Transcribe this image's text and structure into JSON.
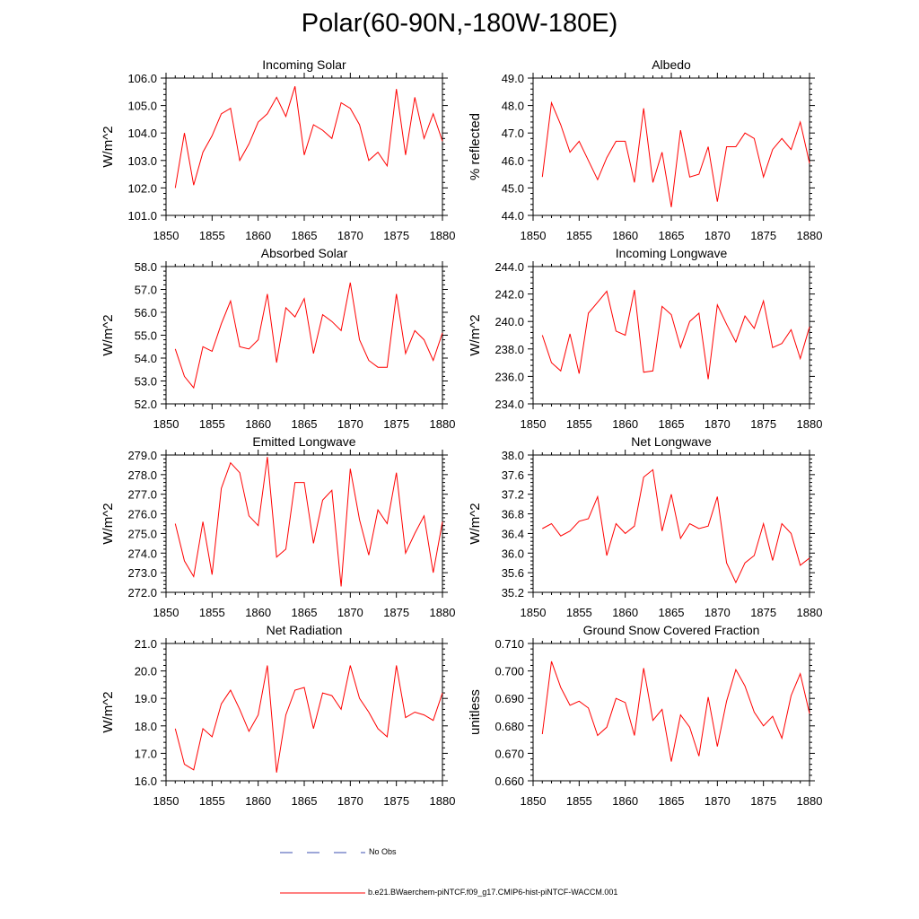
{
  "page_title": "Polar(60-90N,-180W-180E)",
  "legend": {
    "obs_label": "No Obs",
    "obs_color": "#3b4fb0",
    "model_label": "b.e21.BWaerchem-piNTCF.f09_g17.CMIP6-hist-piNTCF-WACCM.001",
    "model_color": "#ff0000"
  },
  "chart_data": [
    {
      "type": "line",
      "title": "Incoming Solar",
      "xlabel": "",
      "ylabel": "W/m^2",
      "xlim": [
        1850,
        1880
      ],
      "ylim": [
        101.0,
        106.0
      ],
      "xticks": [
        1850,
        1855,
        1860,
        1865,
        1870,
        1875,
        1880
      ],
      "yticks": [
        "101.0",
        "102.0",
        "103.0",
        "104.0",
        "105.0",
        "106.0"
      ],
      "series": [
        {
          "color": "#ff0000",
          "x": [
            1851,
            1852,
            1853,
            1854,
            1855,
            1856,
            1857,
            1858,
            1859,
            1860,
            1861,
            1862,
            1863,
            1864,
            1865,
            1866,
            1867,
            1868,
            1869,
            1870,
            1871,
            1872,
            1873,
            1874,
            1875,
            1876,
            1877,
            1878,
            1879,
            1880
          ],
          "values": [
            102.0,
            104.0,
            102.1,
            103.3,
            103.9,
            104.7,
            104.9,
            103.0,
            103.6,
            104.4,
            104.7,
            105.3,
            104.6,
            105.7,
            103.2,
            104.3,
            104.1,
            103.8,
            105.1,
            104.9,
            104.3,
            103.0,
            103.3,
            102.8,
            105.6,
            103.2,
            105.3,
            103.8,
            104.7,
            103.7
          ]
        }
      ]
    },
    {
      "type": "line",
      "title": "Albedo",
      "xlabel": "",
      "ylabel": "% reflected",
      "xlim": [
        1850,
        1880
      ],
      "ylim": [
        44.0,
        49.0
      ],
      "xticks": [
        1850,
        1855,
        1860,
        1865,
        1870,
        1875,
        1880
      ],
      "yticks": [
        "44.0",
        "45.0",
        "46.0",
        "47.0",
        "48.0",
        "49.0"
      ],
      "series": [
        {
          "color": "#ff0000",
          "x": [
            1851,
            1852,
            1853,
            1854,
            1855,
            1856,
            1857,
            1858,
            1859,
            1860,
            1861,
            1862,
            1863,
            1864,
            1865,
            1866,
            1867,
            1868,
            1869,
            1870,
            1871,
            1872,
            1873,
            1874,
            1875,
            1876,
            1877,
            1878,
            1879,
            1880
          ],
          "values": [
            45.4,
            48.1,
            47.3,
            46.3,
            46.7,
            46.0,
            45.3,
            46.1,
            46.7,
            46.7,
            45.2,
            47.9,
            45.2,
            46.3,
            44.3,
            47.1,
            45.4,
            45.5,
            46.5,
            44.5,
            46.5,
            46.5,
            47.0,
            46.8,
            45.4,
            46.4,
            46.8,
            46.4,
            47.4,
            45.9
          ]
        }
      ]
    },
    {
      "type": "line",
      "title": "Absorbed Solar",
      "xlabel": "",
      "ylabel": "W/m^2",
      "xlim": [
        1850,
        1880
      ],
      "ylim": [
        52.0,
        58.0
      ],
      "xticks": [
        1850,
        1855,
        1860,
        1865,
        1870,
        1875,
        1880
      ],
      "yticks": [
        "52.0",
        "53.0",
        "54.0",
        "55.0",
        "56.0",
        "57.0",
        "58.0"
      ],
      "series": [
        {
          "color": "#ff0000",
          "x": [
            1851,
            1852,
            1853,
            1854,
            1855,
            1856,
            1857,
            1858,
            1859,
            1860,
            1861,
            1862,
            1863,
            1864,
            1865,
            1866,
            1867,
            1868,
            1869,
            1870,
            1871,
            1872,
            1873,
            1874,
            1875,
            1876,
            1877,
            1878,
            1879,
            1880
          ],
          "values": [
            54.4,
            53.2,
            52.7,
            54.5,
            54.3,
            55.5,
            56.5,
            54.5,
            54.4,
            54.8,
            56.8,
            53.8,
            56.2,
            55.8,
            56.6,
            54.2,
            55.9,
            55.6,
            55.2,
            57.3,
            54.8,
            53.9,
            53.6,
            53.6,
            56.8,
            54.2,
            55.2,
            54.8,
            53.9,
            55.1
          ]
        }
      ]
    },
    {
      "type": "line",
      "title": "Incoming Longwave",
      "xlabel": "",
      "ylabel": "W/m^2",
      "xlim": [
        1850,
        1880
      ],
      "ylim": [
        234.0,
        244.0
      ],
      "xticks": [
        1850,
        1855,
        1860,
        1865,
        1870,
        1875,
        1880
      ],
      "yticks": [
        "234.0",
        "236.0",
        "238.0",
        "240.0",
        "242.0",
        "244.0"
      ],
      "series": [
        {
          "color": "#ff0000",
          "x": [
            1851,
            1852,
            1853,
            1854,
            1855,
            1856,
            1857,
            1858,
            1859,
            1860,
            1861,
            1862,
            1863,
            1864,
            1865,
            1866,
            1867,
            1868,
            1869,
            1870,
            1871,
            1872,
            1873,
            1874,
            1875,
            1876,
            1877,
            1878,
            1879,
            1880
          ],
          "values": [
            239.0,
            237.0,
            236.4,
            239.1,
            236.2,
            240.6,
            241.4,
            242.2,
            239.3,
            239.0,
            242.3,
            236.3,
            236.4,
            241.1,
            240.5,
            238.1,
            240.0,
            240.6,
            235.8,
            241.2,
            239.8,
            238.5,
            240.4,
            239.5,
            241.5,
            238.1,
            238.4,
            239.4,
            237.3,
            239.6
          ]
        }
      ]
    },
    {
      "type": "line",
      "title": "Emitted Longwave",
      "xlabel": "",
      "ylabel": "W/m^2",
      "xlim": [
        1850,
        1880
      ],
      "ylim": [
        272.0,
        279.0
      ],
      "xticks": [
        1850,
        1855,
        1860,
        1865,
        1870,
        1875,
        1880
      ],
      "yticks": [
        "272.0",
        "273.0",
        "274.0",
        "275.0",
        "276.0",
        "277.0",
        "278.0",
        "279.0"
      ],
      "series": [
        {
          "color": "#ff0000",
          "x": [
            1851,
            1852,
            1853,
            1854,
            1855,
            1856,
            1857,
            1858,
            1859,
            1860,
            1861,
            1862,
            1863,
            1864,
            1865,
            1866,
            1867,
            1868,
            1869,
            1870,
            1871,
            1872,
            1873,
            1874,
            1875,
            1876,
            1877,
            1878,
            1879,
            1880
          ],
          "values": [
            275.5,
            273.6,
            272.8,
            275.6,
            272.9,
            277.3,
            278.6,
            278.1,
            275.9,
            275.4,
            278.9,
            273.8,
            274.2,
            277.6,
            277.6,
            274.5,
            276.7,
            277.2,
            272.3,
            278.3,
            275.7,
            273.9,
            276.2,
            275.5,
            278.1,
            274.0,
            275.0,
            275.9,
            273.0,
            275.6
          ]
        }
      ]
    },
    {
      "type": "line",
      "title": "Net Longwave",
      "xlabel": "",
      "ylabel": "W/m^2",
      "xlim": [
        1850,
        1880
      ],
      "ylim": [
        35.2,
        38.0
      ],
      "xticks": [
        1850,
        1855,
        1860,
        1865,
        1870,
        1875,
        1880
      ],
      "yticks": [
        "35.2",
        "35.6",
        "36.0",
        "36.4",
        "36.8",
        "37.2",
        "37.6",
        "38.0"
      ],
      "series": [
        {
          "color": "#ff0000",
          "x": [
            1851,
            1852,
            1853,
            1854,
            1855,
            1856,
            1857,
            1858,
            1859,
            1860,
            1861,
            1862,
            1863,
            1864,
            1865,
            1866,
            1867,
            1868,
            1869,
            1870,
            1871,
            1872,
            1873,
            1874,
            1875,
            1876,
            1877,
            1878,
            1879,
            1880
          ],
          "values": [
            36.5,
            36.6,
            36.35,
            36.45,
            36.65,
            36.7,
            37.15,
            35.95,
            36.6,
            36.4,
            36.55,
            37.55,
            37.7,
            36.45,
            37.2,
            36.3,
            36.6,
            36.5,
            36.55,
            37.15,
            35.8,
            35.4,
            35.8,
            35.95,
            36.6,
            35.85,
            36.6,
            36.4,
            35.75,
            35.9
          ]
        }
      ]
    },
    {
      "type": "line",
      "title": "Net Radiation",
      "xlabel": "",
      "ylabel": "W/m^2",
      "xlim": [
        1850,
        1880
      ],
      "ylim": [
        16.0,
        21.0
      ],
      "xticks": [
        1850,
        1855,
        1860,
        1865,
        1870,
        1875,
        1880
      ],
      "yticks": [
        "16.0",
        "17.0",
        "18.0",
        "19.0",
        "20.0",
        "21.0"
      ],
      "series": [
        {
          "color": "#ff0000",
          "x": [
            1851,
            1852,
            1853,
            1854,
            1855,
            1856,
            1857,
            1858,
            1859,
            1860,
            1861,
            1862,
            1863,
            1864,
            1865,
            1866,
            1867,
            1868,
            1869,
            1870,
            1871,
            1872,
            1873,
            1874,
            1875,
            1876,
            1877,
            1878,
            1879,
            1880
          ],
          "values": [
            17.9,
            16.6,
            16.4,
            17.9,
            17.6,
            18.8,
            19.3,
            18.6,
            17.8,
            18.4,
            20.2,
            16.3,
            18.4,
            19.3,
            19.4,
            17.9,
            19.2,
            19.1,
            18.6,
            20.2,
            19.0,
            18.5,
            17.9,
            17.6,
            20.2,
            18.3,
            18.5,
            18.4,
            18.2,
            19.2
          ]
        }
      ]
    },
    {
      "type": "line",
      "title": "Ground Snow Covered Fraction",
      "xlabel": "",
      "ylabel": "unitless",
      "xlim": [
        1850,
        1880
      ],
      "ylim": [
        0.66,
        0.71
      ],
      "xticks": [
        1850,
        1855,
        1860,
        1865,
        1870,
        1875,
        1880
      ],
      "yticks": [
        "0.660",
        "0.670",
        "0.680",
        "0.690",
        "0.700",
        "0.710"
      ],
      "series": [
        {
          "color": "#ff0000",
          "x": [
            1851,
            1852,
            1853,
            1854,
            1855,
            1856,
            1857,
            1858,
            1859,
            1860,
            1861,
            1862,
            1863,
            1864,
            1865,
            1866,
            1867,
            1868,
            1869,
            1870,
            1871,
            1872,
            1873,
            1874,
            1875,
            1876,
            1877,
            1878,
            1879,
            1880
          ],
          "values": [
            0.677,
            0.7035,
            0.694,
            0.6875,
            0.689,
            0.6865,
            0.6765,
            0.6795,
            0.69,
            0.6885,
            0.6765,
            0.701,
            0.682,
            0.686,
            0.667,
            0.684,
            0.6795,
            0.669,
            0.6905,
            0.6725,
            0.689,
            0.7005,
            0.6945,
            0.685,
            0.68,
            0.6835,
            0.6755,
            0.691,
            0.699,
            0.6845
          ]
        }
      ]
    }
  ]
}
